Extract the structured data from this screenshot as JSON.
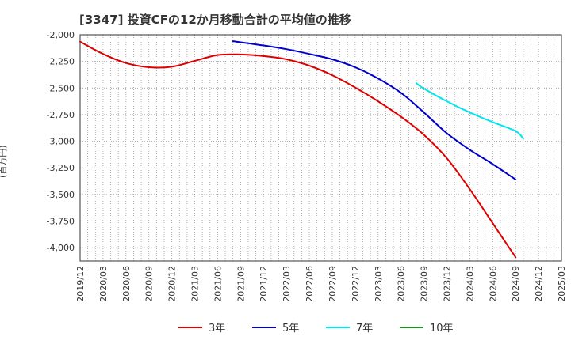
{
  "chart_data": {
    "type": "line",
    "title": "[3347]  投資CFの12か月移動合計の平均値の推移",
    "ylabel": "(百万円)",
    "xlabel": "",
    "ylim": [
      -4125,
      -2000
    ],
    "yticks": [
      -2000,
      -2250,
      -2500,
      -2750,
      -3000,
      -3250,
      -3500,
      -3750,
      -4000
    ],
    "ytick_labels": [
      "-2,000",
      "-2,250",
      "-2,500",
      "-2,750",
      "-3,000",
      "-3,250",
      "-3,500",
      "-3,750",
      "-4,000"
    ],
    "xticks": [
      "2019/12",
      "2020/03",
      "2020/06",
      "2020/09",
      "2020/12",
      "2021/03",
      "2021/06",
      "2021/09",
      "2021/12",
      "2022/03",
      "2022/06",
      "2022/09",
      "2022/12",
      "2023/03",
      "2023/06",
      "2023/09",
      "2023/12",
      "2024/03",
      "2024/06",
      "2024/09",
      "2024/12",
      "2025/03"
    ],
    "grid": true,
    "legend_position": "bottom",
    "series": [
      {
        "name": "3年",
        "color": "#dd0000",
        "points": [
          [
            "2019/12",
            -2065
          ],
          [
            "2020/03",
            -2180
          ],
          [
            "2020/06",
            -2265
          ],
          [
            "2020/09",
            -2305
          ],
          [
            "2020/12",
            -2300
          ],
          [
            "2021/03",
            -2245
          ],
          [
            "2021/06",
            -2190
          ],
          [
            "2021/09",
            -2185
          ],
          [
            "2021/12",
            -2200
          ],
          [
            "2022/03",
            -2230
          ],
          [
            "2022/06",
            -2290
          ],
          [
            "2022/09",
            -2380
          ],
          [
            "2022/12",
            -2495
          ],
          [
            "2023/03",
            -2625
          ],
          [
            "2023/06",
            -2770
          ],
          [
            "2023/09",
            -2940
          ],
          [
            "2023/12",
            -3160
          ],
          [
            "2024/03",
            -3450
          ],
          [
            "2024/06",
            -3770
          ],
          [
            "2024/09",
            -4090
          ]
        ]
      },
      {
        "name": "5年",
        "color": "#0000cc",
        "points": [
          [
            "2021/08",
            -2060
          ],
          [
            "2021/12",
            -2100
          ],
          [
            "2022/03",
            -2135
          ],
          [
            "2022/06",
            -2180
          ],
          [
            "2022/09",
            -2230
          ],
          [
            "2022/12",
            -2305
          ],
          [
            "2023/03",
            -2410
          ],
          [
            "2023/06",
            -2545
          ],
          [
            "2023/09",
            -2730
          ],
          [
            "2023/12",
            -2925
          ],
          [
            "2024/03",
            -3080
          ],
          [
            "2024/06",
            -3215
          ],
          [
            "2024/09",
            -3360
          ]
        ]
      },
      {
        "name": "7年",
        "color": "#00e5ee",
        "points": [
          [
            "2023/08",
            -2455
          ],
          [
            "2023/09",
            -2505
          ],
          [
            "2023/12",
            -2625
          ],
          [
            "2024/03",
            -2730
          ],
          [
            "2024/06",
            -2820
          ],
          [
            "2024/09",
            -2905
          ],
          [
            "2024/10",
            -2975
          ]
        ]
      },
      {
        "name": "10年",
        "color": "#228b22",
        "points": []
      }
    ]
  }
}
